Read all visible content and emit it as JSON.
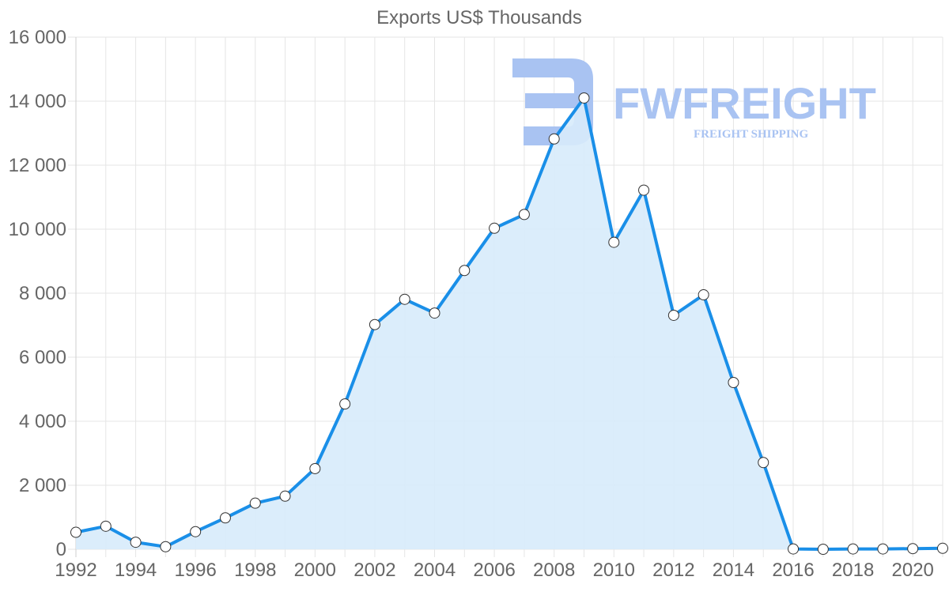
{
  "watermark": {
    "name": "FWFREIGHT",
    "tagline": "FREIGHT SHIPPING"
  },
  "colors": {
    "line": "#1a8fe8",
    "fill": "#d7ebfb",
    "point_fill": "#ffffff",
    "point_stroke": "#333333"
  },
  "chart_data": {
    "type": "area",
    "title": "Exports US$ Thousands",
    "xlabel": "",
    "ylabel": "",
    "ylim": [
      0,
      16000
    ],
    "y_ticks": [
      0,
      2000,
      4000,
      6000,
      8000,
      10000,
      12000,
      14000,
      16000
    ],
    "y_tick_labels": [
      "0",
      "2 000",
      "4 000",
      "6 000",
      "8 000",
      "10 000",
      "12 000",
      "14 000",
      "16 000"
    ],
    "x_tick_labels": [
      "1992",
      "1994",
      "1996",
      "1998",
      "2000",
      "2002",
      "2004",
      "2006",
      "2008",
      "2010",
      "2012",
      "2014",
      "2016",
      "2018",
      "2020"
    ],
    "grid": true,
    "series": [
      {
        "name": "Exports US$ Thousands",
        "x": [
          1992,
          1993,
          1994,
          1995,
          1996,
          1997,
          1998,
          1999,
          2000,
          2001,
          2002,
          2003,
          2004,
          2005,
          2006,
          2007,
          2008,
          2009,
          2010,
          2011,
          2012,
          2013,
          2014,
          2015,
          2016,
          2017,
          2018,
          2019,
          2020,
          2021
        ],
        "values": [
          530,
          720,
          220,
          80,
          550,
          980,
          1440,
          1660,
          2520,
          4540,
          7020,
          7810,
          7380,
          8710,
          10030,
          10460,
          12820,
          14100,
          9590,
          11220,
          7310,
          7950,
          5210,
          2710,
          10,
          0,
          10,
          10,
          20,
          30
        ]
      }
    ]
  }
}
